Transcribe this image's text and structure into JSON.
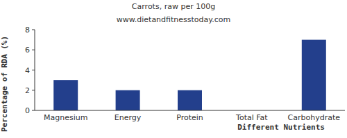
{
  "chart_data": {
    "type": "bar",
    "title": "Carrots, raw per 100g",
    "subtitle": "www.dietandfitnesstoday.com",
    "x_label": "Different Nutrients",
    "y_label": "Percentage of RDA (%)",
    "categories": [
      "Magnesium",
      "Energy",
      "Protein",
      "Total Fat",
      "Carbohydrate"
    ],
    "values": [
      3,
      2,
      2,
      0,
      7
    ],
    "color": "#233f8c",
    "ylim": [
      0,
      8
    ],
    "yticks": [
      0,
      2,
      4,
      6,
      8
    ],
    "grid": false
  }
}
